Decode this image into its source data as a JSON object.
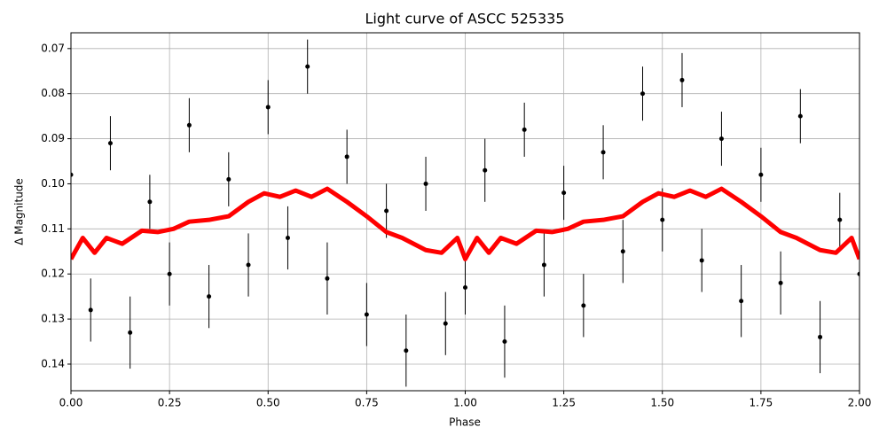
{
  "chart_data": {
    "type": "scatter",
    "title": "Light curve of ASCC 525335",
    "x_label": "Phase",
    "y_label": "Δ Magnitude",
    "grid": true,
    "xlim": [
      0,
      2
    ],
    "ylim": [
      0.1459,
      0.0665
    ],
    "xticks": [
      {
        "value": 0,
        "label": "0.00"
      },
      {
        "value": 0.25,
        "label": "0.25"
      },
      {
        "value": 0.5,
        "label": "0.50"
      },
      {
        "value": 0.75,
        "label": "0.75"
      },
      {
        "value": 1,
        "label": "1.00"
      },
      {
        "value": 1.25,
        "label": "1.25"
      },
      {
        "value": 1.5,
        "label": "1.50"
      },
      {
        "value": 1.75,
        "label": "1.75"
      },
      {
        "value": 2,
        "label": "2.00"
      }
    ],
    "yticks": [
      {
        "value": 0.07,
        "label": "0.07"
      },
      {
        "value": 0.08,
        "label": "0.08"
      },
      {
        "value": 0.09,
        "label": "0.09"
      },
      {
        "value": 0.1,
        "label": "0.10"
      },
      {
        "value": 0.11,
        "label": "0.11"
      },
      {
        "value": 0.12,
        "label": "0.12"
      },
      {
        "value": 0.13,
        "label": "0.13"
      },
      {
        "value": 0.14,
        "label": "0.14"
      }
    ],
    "series": [
      {
        "mode": "points",
        "color": "#000000",
        "x": [
          0,
          0.05,
          0.1,
          0.15,
          0.2,
          0.25,
          0.3,
          0.35,
          0.4,
          0.45,
          0.5,
          0.55,
          0.6,
          0.65,
          0.7,
          0.75,
          0.8,
          0.85,
          0.9,
          0.95,
          1,
          1.05,
          1.1,
          1.15,
          1.2,
          1.25,
          1.3,
          1.35,
          1.4,
          1.45,
          1.5,
          1.55,
          1.6,
          1.65,
          1.7,
          1.75,
          1.8,
          1.85,
          1.9,
          1.95,
          2
        ],
        "values": [
          0.098,
          0.128,
          0.091,
          0.133,
          0.104,
          0.12,
          0.087,
          0.125,
          0.099,
          0.118,
          0.083,
          0.112,
          0.074,
          0.121,
          0.094,
          0.129,
          0.106,
          0.137,
          0.1,
          0.131,
          0.123,
          0.097,
          0.135,
          0.088,
          0.118,
          0.102,
          0.127,
          0.093,
          0.115,
          0.08,
          0.108,
          0.077,
          0.117,
          0.09,
          0.126,
          0.098,
          0.122,
          0.085,
          0.134,
          0.108,
          0.12
        ],
        "errors": [
          0.006,
          0.007,
          0.006,
          0.008,
          0.006,
          0.007,
          0.006,
          0.007,
          0.006,
          0.007,
          0.006,
          0.007,
          0.006,
          0.008,
          0.006,
          0.007,
          0.006,
          0.008,
          0.006,
          0.007,
          0.006,
          0.007,
          0.008,
          0.006,
          0.007,
          0.006,
          0.007,
          0.006,
          0.007,
          0.006,
          0.007,
          0.006,
          0.007,
          0.006,
          0.008,
          0.006,
          0.007,
          0.006,
          0.008,
          0.006,
          0.007
        ]
      },
      {
        "mode": "line",
        "color": "#ff0000",
        "x": [
          0,
          0.03,
          0.06,
          0.09,
          0.13,
          0.18,
          0.22,
          0.26,
          0.3,
          0.35,
          0.4,
          0.45,
          0.49,
          0.53,
          0.57,
          0.61,
          0.65,
          0.7,
          0.75,
          0.8,
          0.84,
          0.9,
          0.94,
          0.98,
          1,
          1.03,
          1.06,
          1.09,
          1.13,
          1.18,
          1.22,
          1.26,
          1.3,
          1.35,
          1.4,
          1.45,
          1.49,
          1.53,
          1.57,
          1.61,
          1.65,
          1.7,
          1.75,
          1.8,
          1.84,
          1.9,
          1.94,
          1.98,
          2
        ],
        "values": [
          0.1167,
          0.112,
          0.1153,
          0.112,
          0.1133,
          0.1104,
          0.1107,
          0.11,
          0.1084,
          0.108,
          0.1072,
          0.104,
          0.1021,
          0.1029,
          0.1015,
          0.1029,
          0.1011,
          0.104,
          0.1072,
          0.1107,
          0.112,
          0.1147,
          0.1153,
          0.112,
          0.1167,
          0.112,
          0.1153,
          0.112,
          0.1133,
          0.1104,
          0.1107,
          0.11,
          0.1084,
          0.108,
          0.1072,
          0.104,
          0.1021,
          0.1029,
          0.1015,
          0.1029,
          0.1011,
          0.104,
          0.1072,
          0.1107,
          0.112,
          0.1147,
          0.1153,
          0.112,
          0.1167
        ]
      }
    ]
  }
}
